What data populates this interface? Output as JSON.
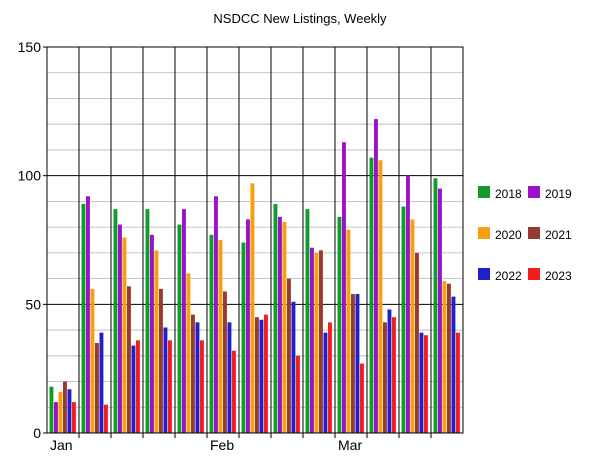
{
  "chart_data": {
    "type": "bar",
    "title": "NSDCC New Listings, Weekly",
    "xlabel": "",
    "ylabel": "",
    "ylim": [
      0,
      150
    ],
    "yticks": [
      0,
      50,
      100,
      150
    ],
    "grid": true,
    "legend_position": "right",
    "x_labels": [
      {
        "label": "Jan",
        "group_index": 0
      },
      {
        "label": "Feb",
        "group_index": 5
      },
      {
        "label": "Mar",
        "group_index": 9
      }
    ],
    "group_count": 13,
    "series": [
      {
        "name": "2018",
        "color": "#129b2c",
        "values": [
          18,
          89,
          87,
          87,
          81,
          77,
          74,
          89,
          87,
          84,
          107,
          88,
          99
        ]
      },
      {
        "name": "2019",
        "color": "#9b12c8",
        "values": [
          12,
          92,
          81,
          77,
          87,
          92,
          83,
          84,
          72,
          113,
          122,
          100,
          95
        ]
      },
      {
        "name": "2020",
        "color": "#f5a00f",
        "values": [
          16,
          56,
          76,
          71,
          62,
          75,
          97,
          82,
          70,
          79,
          106,
          83,
          59
        ]
      },
      {
        "name": "2021",
        "color": "#963a32",
        "values": [
          20,
          35,
          57,
          56,
          46,
          55,
          45,
          60,
          71,
          54,
          43,
          70,
          58
        ]
      },
      {
        "name": "2022",
        "color": "#2020c8",
        "values": [
          17,
          39,
          34,
          41,
          43,
          43,
          44,
          51,
          39,
          54,
          48,
          39,
          53
        ]
      },
      {
        "name": "2023",
        "color": "#f01e1e",
        "values": [
          12,
          11,
          36,
          36,
          36,
          32,
          46,
          30,
          43,
          27,
          45,
          38,
          39
        ]
      }
    ]
  }
}
